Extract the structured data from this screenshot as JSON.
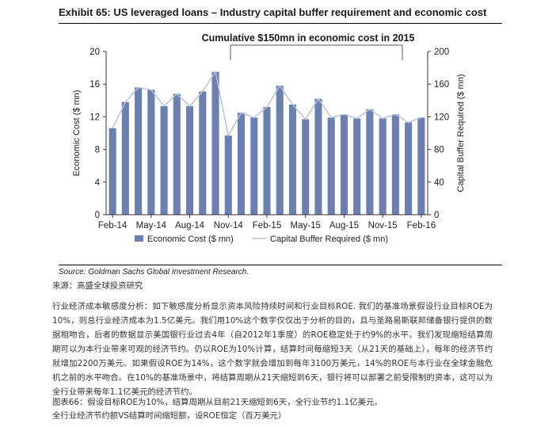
{
  "exhibit_title": "Exhibit 65: US leveraged loans – Industry capital buffer requirement and economic cost",
  "source_en": "Source: Goldman Sachs Global Investment Research.",
  "source_cn": "来源：高盛全球投资研究",
  "paragraph_cn": "行业经济成本敏感度分析：如下敏感度分析显示资本风险持续时间和行业目标ROE. 我们的基准场景假设行业目标ROE为10%，则总行业经济成本为1.5亿美元。我们用10%这个数字仅仅出于分析的目的，且与圣路易斯联邦储备银行提供的数据相吻合，后者的数据显示美国银行业过去4年（自2012年1季度）的ROE稳定处于约9%的水平。我们发现缩短结算周期可以为本行业带来可观的经济节约。仍以ROE为10%计算，结算时间每缩短3天（从21天的基础上），每年的经济节约就增加2200万美元。如果假设ROE为14%，这个数字就会增加到每年3100万美元，14%的ROE与本行业在全球金融危机之前的水平吻合。在10%的基准场景中，将结算周期从21天缩短到6天，银行将可以部署之前受限制的资本，这可以为全行业带来每年1.1亿美元的经济节约。",
  "figure_caption_cn": "图表66：假设目标ROE为10%，结算周期从目前21天缩短到6天，全行业节约1.1亿美元。",
  "figure_subtitle_cn": "全行业经济节约额VS结算时间缩短额，设ROE恒定（百万美元）",
  "chart_data": {
    "type": "bar",
    "annotation": "Cumulative $150mn in economic cost in 2015",
    "x_tick_labels": [
      "Feb-14",
      "May-14",
      "Aug-14",
      "Nov-14",
      "Feb-15",
      "May-15",
      "Aug-15",
      "Nov-15",
      "Feb-16"
    ],
    "ylabel_left": "Economic Cost ($ mn)",
    "ylabel_right": "Capital Buffer Required ($ mn)",
    "ylim_left": [
      0,
      20
    ],
    "ylim_right": [
      0,
      200
    ],
    "y_ticks_left": [
      "0",
      "4",
      "8",
      "12",
      "16",
      "20"
    ],
    "y_ticks_right": [
      "0",
      "40",
      "80",
      "120",
      "160",
      "200"
    ],
    "grid": false,
    "legend_position": "bottom",
    "series": [
      {
        "name": "Economic Cost ($ mn)",
        "type": "bar",
        "axis": "left",
        "color": "#6b7fb0",
        "values": [
          10.6,
          13.8,
          15.6,
          15.3,
          13.3,
          14.8,
          13.3,
          15.1,
          17.5,
          9.7,
          12.5,
          11.9,
          13.2,
          15.8,
          13.5,
          11.7,
          14.2,
          11.9,
          12.3,
          11.8,
          12.9,
          11.8,
          12.3,
          11.3,
          11.9
        ]
      },
      {
        "name": "Capital Buffer Required ($ mn)",
        "type": "line",
        "axis": "right",
        "color": "#b7c2dc",
        "values": [
          106,
          138,
          156,
          153,
          133,
          148,
          133,
          151,
          175,
          97,
          125,
          119,
          132,
          158,
          135,
          117,
          142,
          119,
          123,
          118,
          129,
          118,
          123,
          113,
          119
        ]
      }
    ]
  }
}
